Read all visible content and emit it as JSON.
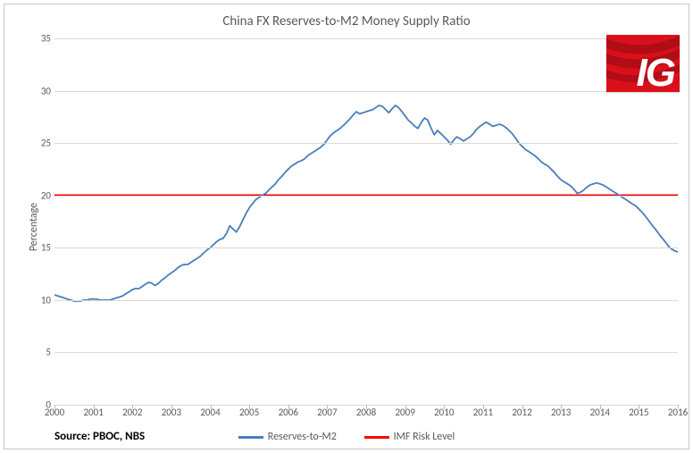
{
  "title": "China FX Reserves-to-M2 Money Supply Ratio",
  "ylabel": "Percentage",
  "source": "Source: PBOC, NBS",
  "logo_text": "IG",
  "chart": {
    "type": "line",
    "background_color": "#ffffff",
    "grid_color": "#d9d9d9",
    "axis_text_color": "#595959",
    "title_fontsize": 15,
    "label_fontsize": 12,
    "tick_fontsize": 11,
    "x_axis": {
      "min": 2000,
      "max": 2016,
      "step": 1,
      "labels": [
        "2000",
        "2001",
        "2002",
        "2003",
        "2004",
        "2005",
        "2006",
        "2007",
        "2008",
        "2009",
        "2010",
        "2011",
        "2012",
        "2013",
        "2014",
        "2015",
        "2016"
      ]
    },
    "y_axis": {
      "min": 0,
      "max": 35,
      "step": 5,
      "labels": [
        "0",
        "5",
        "10",
        "15",
        "20",
        "25",
        "30",
        "35"
      ]
    },
    "risk_level": {
      "label": "IMF Risk Level",
      "value": 20,
      "color": "#ff0000",
      "line_width": 2.5
    },
    "series_main": {
      "label": "Reserves-to-M2",
      "color": "#4a7ebb",
      "line_width": 1.8,
      "data": [
        [
          2000.0,
          10.5
        ],
        [
          2000.08,
          10.4
        ],
        [
          2000.17,
          10.3
        ],
        [
          2000.25,
          10.2
        ],
        [
          2000.33,
          10.1
        ],
        [
          2000.42,
          10.0
        ],
        [
          2000.5,
          9.9
        ],
        [
          2000.58,
          9.9
        ],
        [
          2000.67,
          9.9
        ],
        [
          2000.75,
          10.0
        ],
        [
          2000.83,
          10.0
        ],
        [
          2000.92,
          10.1
        ],
        [
          2001.0,
          10.1
        ],
        [
          2001.08,
          10.1
        ],
        [
          2001.17,
          10.0
        ],
        [
          2001.25,
          10.0
        ],
        [
          2001.33,
          10.0
        ],
        [
          2001.42,
          10.0
        ],
        [
          2001.5,
          10.1
        ],
        [
          2001.58,
          10.2
        ],
        [
          2001.67,
          10.3
        ],
        [
          2001.75,
          10.4
        ],
        [
          2001.83,
          10.6
        ],
        [
          2001.92,
          10.8
        ],
        [
          2002.0,
          11.0
        ],
        [
          2002.08,
          11.1
        ],
        [
          2002.17,
          11.1
        ],
        [
          2002.25,
          11.3
        ],
        [
          2002.33,
          11.5
        ],
        [
          2002.42,
          11.7
        ],
        [
          2002.5,
          11.6
        ],
        [
          2002.58,
          11.4
        ],
        [
          2002.67,
          11.6
        ],
        [
          2002.75,
          11.9
        ],
        [
          2002.83,
          12.1
        ],
        [
          2002.92,
          12.4
        ],
        [
          2003.0,
          12.6
        ],
        [
          2003.08,
          12.8
        ],
        [
          2003.17,
          13.1
        ],
        [
          2003.25,
          13.3
        ],
        [
          2003.33,
          13.4
        ],
        [
          2003.42,
          13.4
        ],
        [
          2003.5,
          13.6
        ],
        [
          2003.58,
          13.8
        ],
        [
          2003.67,
          14.0
        ],
        [
          2003.75,
          14.2
        ],
        [
          2003.83,
          14.5
        ],
        [
          2003.92,
          14.8
        ],
        [
          2004.0,
          15.0
        ],
        [
          2004.08,
          15.3
        ],
        [
          2004.17,
          15.6
        ],
        [
          2004.25,
          15.8
        ],
        [
          2004.33,
          15.9
        ],
        [
          2004.42,
          16.4
        ],
        [
          2004.5,
          17.1
        ],
        [
          2004.58,
          16.8
        ],
        [
          2004.67,
          16.5
        ],
        [
          2004.75,
          17.0
        ],
        [
          2004.83,
          17.6
        ],
        [
          2004.92,
          18.3
        ],
        [
          2005.0,
          18.8
        ],
        [
          2005.08,
          19.2
        ],
        [
          2005.17,
          19.6
        ],
        [
          2005.25,
          19.8
        ],
        [
          2005.33,
          20.0
        ],
        [
          2005.42,
          20.2
        ],
        [
          2005.5,
          20.5
        ],
        [
          2005.58,
          20.8
        ],
        [
          2005.67,
          21.1
        ],
        [
          2005.75,
          21.5
        ],
        [
          2005.83,
          21.8
        ],
        [
          2005.92,
          22.2
        ],
        [
          2006.0,
          22.5
        ],
        [
          2006.08,
          22.8
        ],
        [
          2006.17,
          23.0
        ],
        [
          2006.25,
          23.2
        ],
        [
          2006.33,
          23.3
        ],
        [
          2006.42,
          23.5
        ],
        [
          2006.5,
          23.8
        ],
        [
          2006.58,
          24.0
        ],
        [
          2006.67,
          24.2
        ],
        [
          2006.75,
          24.4
        ],
        [
          2006.83,
          24.6
        ],
        [
          2006.92,
          24.9
        ],
        [
          2007.0,
          25.3
        ],
        [
          2007.08,
          25.7
        ],
        [
          2007.17,
          26.0
        ],
        [
          2007.25,
          26.2
        ],
        [
          2007.33,
          26.4
        ],
        [
          2007.42,
          26.7
        ],
        [
          2007.5,
          27.0
        ],
        [
          2007.58,
          27.3
        ],
        [
          2007.67,
          27.7
        ],
        [
          2007.75,
          28.0
        ],
        [
          2007.83,
          27.8
        ],
        [
          2007.92,
          27.9
        ],
        [
          2008.0,
          28.0
        ],
        [
          2008.08,
          28.1
        ],
        [
          2008.17,
          28.2
        ],
        [
          2008.25,
          28.4
        ],
        [
          2008.33,
          28.6
        ],
        [
          2008.42,
          28.5
        ],
        [
          2008.5,
          28.2
        ],
        [
          2008.58,
          27.9
        ],
        [
          2008.67,
          28.3
        ],
        [
          2008.75,
          28.6
        ],
        [
          2008.83,
          28.4
        ],
        [
          2008.92,
          28.0
        ],
        [
          2009.0,
          27.6
        ],
        [
          2009.08,
          27.2
        ],
        [
          2009.17,
          26.9
        ],
        [
          2009.25,
          26.6
        ],
        [
          2009.33,
          26.4
        ],
        [
          2009.42,
          27.0
        ],
        [
          2009.5,
          27.4
        ],
        [
          2009.58,
          27.2
        ],
        [
          2009.67,
          26.4
        ],
        [
          2009.75,
          25.8
        ],
        [
          2009.83,
          26.2
        ],
        [
          2009.92,
          25.9
        ],
        [
          2010.0,
          25.6
        ],
        [
          2010.08,
          25.3
        ],
        [
          2010.17,
          24.9
        ],
        [
          2010.25,
          25.3
        ],
        [
          2010.33,
          25.6
        ],
        [
          2010.42,
          25.4
        ],
        [
          2010.5,
          25.2
        ],
        [
          2010.58,
          25.4
        ],
        [
          2010.67,
          25.6
        ],
        [
          2010.75,
          25.9
        ],
        [
          2010.83,
          26.3
        ],
        [
          2010.92,
          26.6
        ],
        [
          2011.0,
          26.8
        ],
        [
          2011.08,
          27.0
        ],
        [
          2011.17,
          26.8
        ],
        [
          2011.25,
          26.6
        ],
        [
          2011.33,
          26.7
        ],
        [
          2011.42,
          26.8
        ],
        [
          2011.5,
          26.7
        ],
        [
          2011.58,
          26.5
        ],
        [
          2011.67,
          26.2
        ],
        [
          2011.75,
          25.9
        ],
        [
          2011.83,
          25.5
        ],
        [
          2011.92,
          25.0
        ],
        [
          2012.0,
          24.7
        ],
        [
          2012.08,
          24.4
        ],
        [
          2012.17,
          24.2
        ],
        [
          2012.25,
          24.0
        ],
        [
          2012.33,
          23.8
        ],
        [
          2012.42,
          23.5
        ],
        [
          2012.5,
          23.2
        ],
        [
          2012.58,
          23.0
        ],
        [
          2012.67,
          22.8
        ],
        [
          2012.75,
          22.5
        ],
        [
          2012.83,
          22.2
        ],
        [
          2012.92,
          21.8
        ],
        [
          2013.0,
          21.5
        ],
        [
          2013.08,
          21.3
        ],
        [
          2013.17,
          21.1
        ],
        [
          2013.25,
          20.9
        ],
        [
          2013.33,
          20.6
        ],
        [
          2013.42,
          20.2
        ],
        [
          2013.5,
          20.3
        ],
        [
          2013.58,
          20.5
        ],
        [
          2013.67,
          20.8
        ],
        [
          2013.75,
          21.0
        ],
        [
          2013.83,
          21.1
        ],
        [
          2013.92,
          21.2
        ],
        [
          2014.0,
          21.1
        ],
        [
          2014.08,
          21.0
        ],
        [
          2014.17,
          20.8
        ],
        [
          2014.25,
          20.6
        ],
        [
          2014.33,
          20.4
        ],
        [
          2014.42,
          20.2
        ],
        [
          2014.5,
          20.0
        ],
        [
          2014.58,
          19.8
        ],
        [
          2014.67,
          19.6
        ],
        [
          2014.75,
          19.4
        ],
        [
          2014.83,
          19.2
        ],
        [
          2014.92,
          19.0
        ],
        [
          2015.0,
          18.7
        ],
        [
          2015.08,
          18.4
        ],
        [
          2015.17,
          18.0
        ],
        [
          2015.25,
          17.6
        ],
        [
          2015.33,
          17.2
        ],
        [
          2015.42,
          16.8
        ],
        [
          2015.5,
          16.4
        ],
        [
          2015.58,
          16.0
        ],
        [
          2015.67,
          15.6
        ],
        [
          2015.75,
          15.2
        ],
        [
          2015.83,
          14.9
        ],
        [
          2015.92,
          14.7
        ],
        [
          2016.0,
          14.6
        ]
      ]
    },
    "legend_position": "bottom-center"
  },
  "logo": {
    "bg_color": "#d9101a",
    "curve_color": "#b00d16",
    "text_color": "#ffffff"
  }
}
